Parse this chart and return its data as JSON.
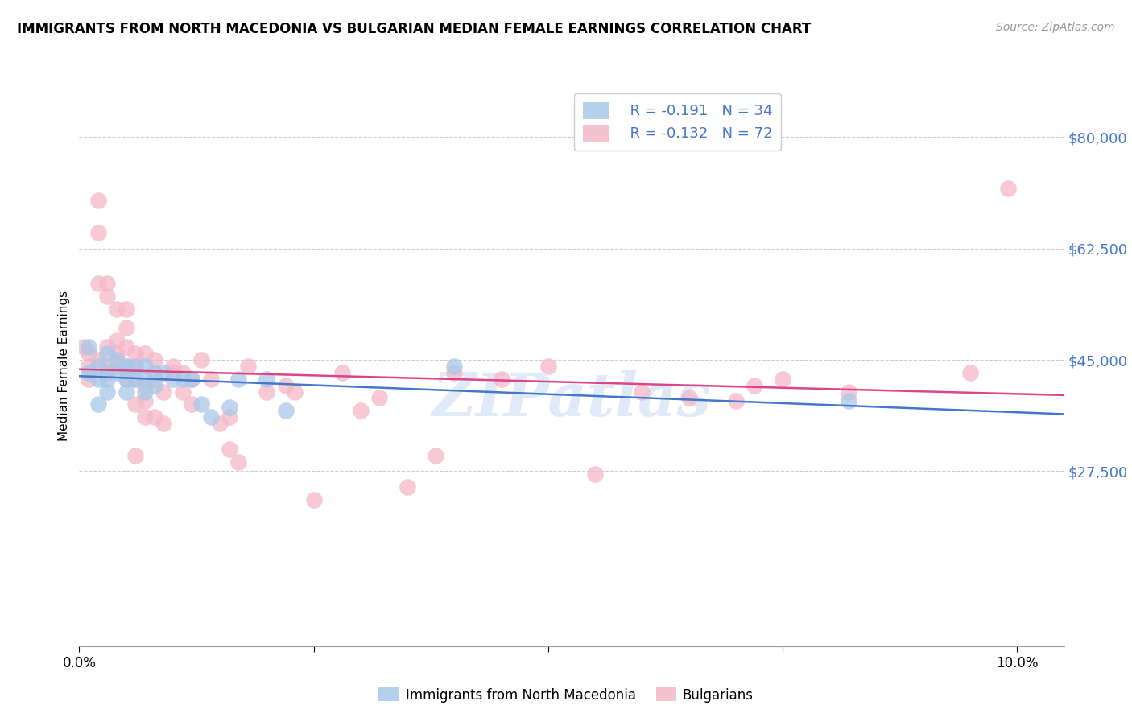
{
  "title": "IMMIGRANTS FROM NORTH MACEDONIA VS BULGARIAN MEDIAN FEMALE EARNINGS CORRELATION CHART",
  "source": "Source: ZipAtlas.com",
  "ylabel": "Median Female Earnings",
  "legend1_r": "R = -0.191",
  "legend1_n": "N = 34",
  "legend2_r": "R = -0.132",
  "legend2_n": "N = 72",
  "blue_color": "#a8c8e8",
  "pink_color": "#f4b8c8",
  "trend_blue": "#4477cc",
  "trend_pink": "#dd4488",
  "watermark": "ZIPatlas",
  "ymin": 0,
  "ymax": 88000,
  "xmin": 0.0,
  "xmax": 0.105,
  "ytick_positions": [
    27500,
    45000,
    62500,
    80000
  ],
  "ytick_labels": [
    "$27,500",
    "$45,000",
    "$62,500",
    "$80,000"
  ],
  "xtick_positions": [
    0.0,
    0.025,
    0.05,
    0.075,
    0.1
  ],
  "xtick_labels": [
    "0.0%",
    "",
    "",
    "",
    "10.0%"
  ],
  "blue_scatter_x": [
    0.001,
    0.001,
    0.002,
    0.002,
    0.002,
    0.003,
    0.003,
    0.003,
    0.003,
    0.004,
    0.004,
    0.005,
    0.005,
    0.005,
    0.005,
    0.006,
    0.006,
    0.007,
    0.007,
    0.007,
    0.008,
    0.008,
    0.009,
    0.01,
    0.011,
    0.012,
    0.013,
    0.014,
    0.016,
    0.017,
    0.02,
    0.022,
    0.04,
    0.082
  ],
  "blue_scatter_y": [
    47000,
    43000,
    44000,
    42000,
    38000,
    46000,
    43000,
    42000,
    40000,
    45000,
    43000,
    44000,
    43500,
    42000,
    40000,
    44000,
    42000,
    44000,
    42000,
    40000,
    43000,
    41000,
    43000,
    42000,
    42000,
    42000,
    38000,
    36000,
    37500,
    42000,
    42000,
    37000,
    44000,
    38500
  ],
  "pink_scatter_x": [
    0.0005,
    0.001,
    0.001,
    0.001,
    0.002,
    0.002,
    0.002,
    0.002,
    0.003,
    0.003,
    0.003,
    0.003,
    0.003,
    0.004,
    0.004,
    0.004,
    0.004,
    0.004,
    0.005,
    0.005,
    0.005,
    0.005,
    0.005,
    0.005,
    0.006,
    0.006,
    0.006,
    0.006,
    0.006,
    0.007,
    0.007,
    0.007,
    0.007,
    0.008,
    0.008,
    0.008,
    0.009,
    0.009,
    0.01,
    0.01,
    0.011,
    0.011,
    0.012,
    0.012,
    0.013,
    0.014,
    0.015,
    0.016,
    0.016,
    0.017,
    0.018,
    0.02,
    0.022,
    0.023,
    0.025,
    0.028,
    0.03,
    0.032,
    0.035,
    0.038,
    0.04,
    0.045,
    0.05,
    0.055,
    0.06,
    0.065,
    0.07,
    0.072,
    0.075,
    0.082,
    0.095,
    0.099
  ],
  "pink_scatter_y": [
    47000,
    44000,
    46000,
    42000,
    65000,
    70000,
    57000,
    45000,
    43500,
    47000,
    55000,
    44000,
    57000,
    46000,
    48000,
    44000,
    53000,
    44500,
    50000,
    53000,
    44000,
    47000,
    43500,
    42000,
    46000,
    42000,
    44000,
    38000,
    30000,
    46000,
    41000,
    38500,
    36000,
    42000,
    45000,
    36000,
    40000,
    35000,
    44000,
    43000,
    43000,
    40000,
    42000,
    38000,
    45000,
    42000,
    35000,
    31000,
    36000,
    29000,
    44000,
    40000,
    41000,
    40000,
    23000,
    43000,
    37000,
    39000,
    25000,
    30000,
    43000,
    42000,
    44000,
    27000,
    40000,
    39000,
    38500,
    41000,
    42000,
    40000,
    43000,
    72000
  ]
}
